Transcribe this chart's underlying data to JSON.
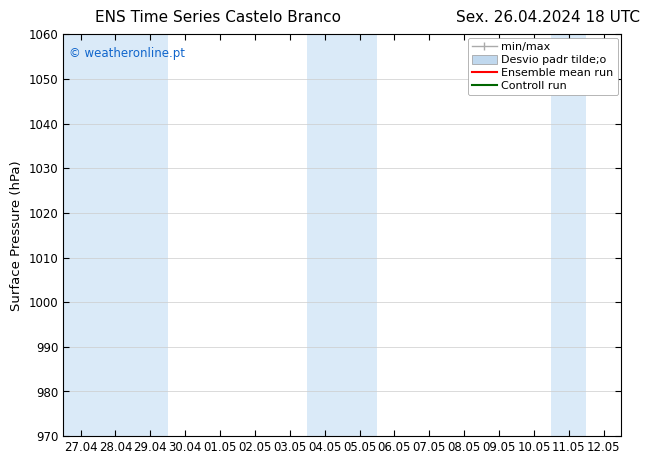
{
  "title_left": "ENS Time Series Castelo Branco",
  "title_right": "Sex. 26.04.2024 18 UTC",
  "ylabel": "Surface Pressure (hPa)",
  "ylim": [
    970,
    1060
  ],
  "yticks": [
    970,
    980,
    990,
    1000,
    1010,
    1020,
    1030,
    1040,
    1050,
    1060
  ],
  "x_tick_labels": [
    "27.04",
    "28.04",
    "29.04",
    "30.04",
    "01.05",
    "02.05",
    "03.05",
    "04.05",
    "05.05",
    "06.05",
    "07.05",
    "08.05",
    "09.05",
    "10.05",
    "11.05",
    "12.05"
  ],
  "watermark": "© weatheronline.pt",
  "watermark_color": "#1166cc",
  "bg_color": "#ffffff",
  "plot_bg_color": "#ffffff",
  "shaded_band_color": "#daeaf8",
  "shaded_columns": [
    0,
    1,
    2,
    7,
    8,
    14
  ],
  "num_cols": 16,
  "title_fontsize": 11,
  "tick_fontsize": 8.5,
  "ylabel_fontsize": 9.5,
  "legend_fontsize": 8,
  "minmax_color": "#aaaaaa",
  "desvio_color": "#c0d8ee",
  "ensemble_color": "#ff0000",
  "controll_color": "#006600"
}
